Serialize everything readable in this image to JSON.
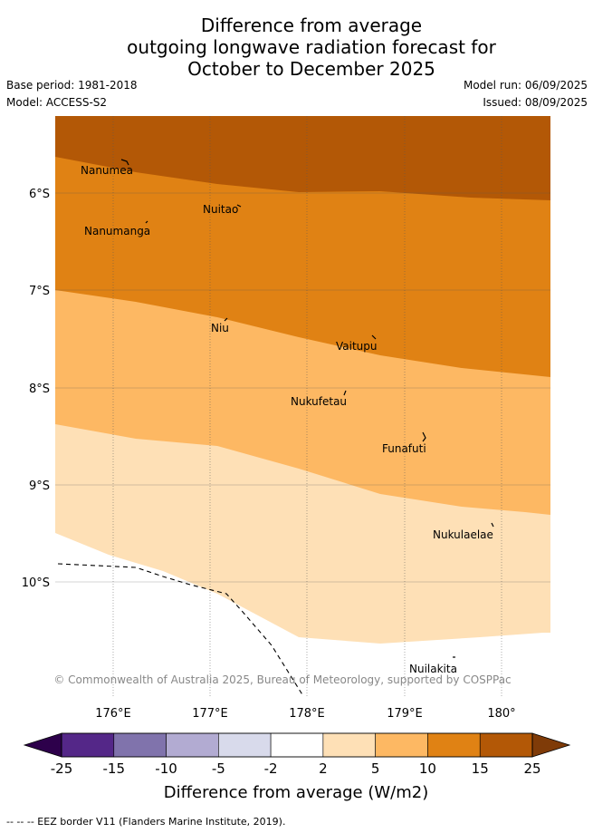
{
  "title_lines": [
    "Difference from average",
    "outgoing longwave radiation forecast for",
    "October to December 2025"
  ],
  "meta": {
    "base_period": "Base period: 1981-2018",
    "model": "Model: ACCESS-S2",
    "model_run": "Model run: 06/09/2025",
    "issued": "Issued: 08/09/2025"
  },
  "map": {
    "lat_ticks": [
      "6°S",
      "7°S",
      "8°S",
      "9°S",
      "10°S"
    ],
    "lon_ticks": [
      "176°E",
      "177°E",
      "178°E",
      "179°E",
      "180°"
    ],
    "islands": [
      "Nanumea",
      "Nuitao",
      "Nanumanga",
      "Niu",
      "Vaitupu",
      "Nukufetau",
      "Funafuti",
      "Nukulaelae",
      "Nuilakita"
    ],
    "copyright": "© Commonwealth of Australia 2025, Bureau of Meteorology, supported by COSPPac",
    "colors": {
      "band_15_25": "#b35806",
      "band_10_15": "#e08214",
      "band_5_10": "#fdb863",
      "band_2_5": "#fee0b6",
      "band_neutral": "#ffffff"
    }
  },
  "colorbar": {
    "labels": [
      "-25",
      "-15",
      "-10",
      "-5",
      "-2",
      "2",
      "5",
      "10",
      "15",
      "25"
    ],
    "colors": [
      "#542788",
      "#8073ac",
      "#b2abd2",
      "#d8daeb",
      "#ffffff",
      "#fee0b6",
      "#fdb863",
      "#e08214",
      "#b35806"
    ],
    "under_color": "#2d004b",
    "over_color": "#7f3b08",
    "label": "Difference from average (W/m2)"
  },
  "footer": "--  --  -- EEZ border V11 (Flanders Marine Institute, 2019)."
}
